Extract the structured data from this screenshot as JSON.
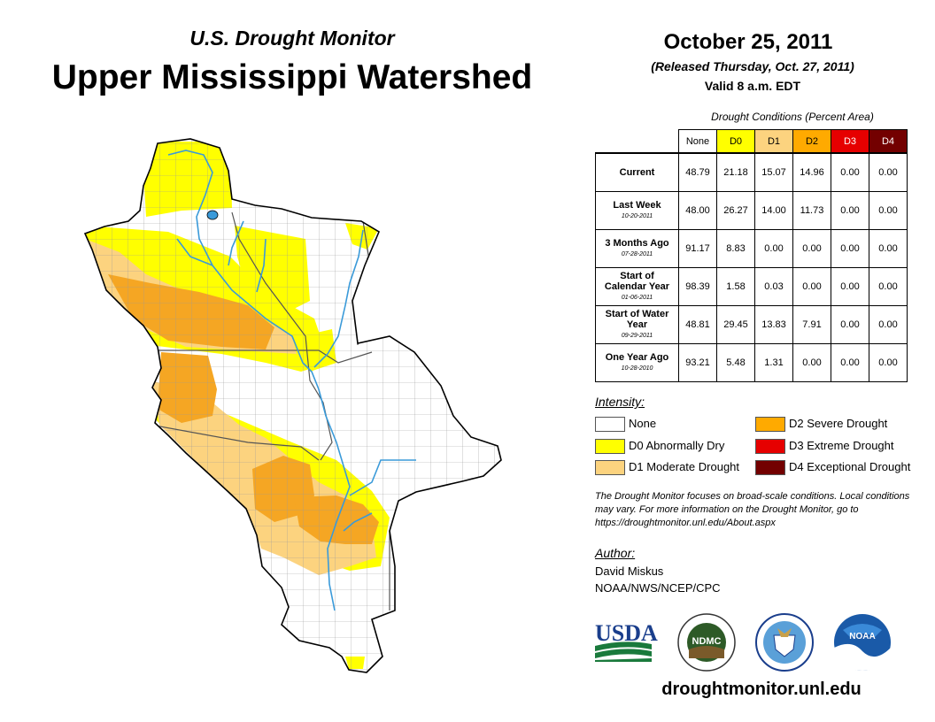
{
  "header": {
    "subtitle": "U.S. Drought Monitor",
    "title": "Upper Mississippi Watershed",
    "date": "October 25, 2011",
    "released": "(Released Thursday, Oct. 27, 2011)",
    "valid": "Valid 8 a.m. EDT"
  },
  "table": {
    "caption": "Drought Conditions (Percent Area)",
    "columns": [
      {
        "label": "None",
        "color": "#ffffff"
      },
      {
        "label": "D0",
        "color": "#ffff00"
      },
      {
        "label": "D1",
        "color": "#fcd37f"
      },
      {
        "label": "D2",
        "color": "#ffaa00"
      },
      {
        "label": "D3",
        "color": "#e60000"
      },
      {
        "label": "D4",
        "color": "#730000"
      }
    ],
    "rows": [
      {
        "label": "Current",
        "date": "",
        "values": [
          "48.79",
          "21.18",
          "15.07",
          "14.96",
          "0.00",
          "0.00"
        ]
      },
      {
        "label": "Last Week",
        "date": "10-20-2011",
        "values": [
          "48.00",
          "26.27",
          "14.00",
          "11.73",
          "0.00",
          "0.00"
        ]
      },
      {
        "label": "3 Months Ago",
        "date": "07-28-2011",
        "values": [
          "91.17",
          "8.83",
          "0.00",
          "0.00",
          "0.00",
          "0.00"
        ]
      },
      {
        "label": "Start of Calendar Year",
        "date": "01-06-2011",
        "values": [
          "98.39",
          "1.58",
          "0.03",
          "0.00",
          "0.00",
          "0.00"
        ]
      },
      {
        "label": "Start of Water Year",
        "date": "09-29-2011",
        "values": [
          "48.81",
          "29.45",
          "13.83",
          "7.91",
          "0.00",
          "0.00"
        ]
      },
      {
        "label": "One Year Ago",
        "date": "10-28-2010",
        "values": [
          "93.21",
          "5.48",
          "1.31",
          "0.00",
          "0.00",
          "0.00"
        ]
      }
    ]
  },
  "legend": {
    "title": "Intensity:",
    "items": [
      {
        "label": "None",
        "color": "#ffffff"
      },
      {
        "label": "D0 Abnormally Dry",
        "color": "#ffff00"
      },
      {
        "label": "D1 Moderate Drought",
        "color": "#fcd37f"
      },
      {
        "label": "D2 Severe Drought",
        "color": "#ffaa00"
      },
      {
        "label": "D3 Extreme Drought",
        "color": "#e60000"
      },
      {
        "label": "D4 Exceptional Drought",
        "color": "#730000"
      }
    ]
  },
  "note": "The Drought Monitor focuses on broad-scale conditions. Local conditions may vary. For more information on the Drought Monitor, go to https://droughtmonitor.unl.edu/About.aspx",
  "author": {
    "label": "Author:",
    "name": "David Miskus",
    "org": "NOAA/NWS/NCEP/CPC"
  },
  "logos": {
    "usda": "USDA",
    "ndmc": "NDMC",
    "noaa": "NOAA"
  },
  "url": "droughtmonitor.unl.edu",
  "map": {
    "colors": {
      "none": "#ffffff",
      "d0": "#ffff00",
      "d1": "#fcd37f",
      "d2": "#f5a623",
      "water": "#3a9ad9",
      "border": "#000000",
      "county": "#9a9a9a"
    }
  }
}
